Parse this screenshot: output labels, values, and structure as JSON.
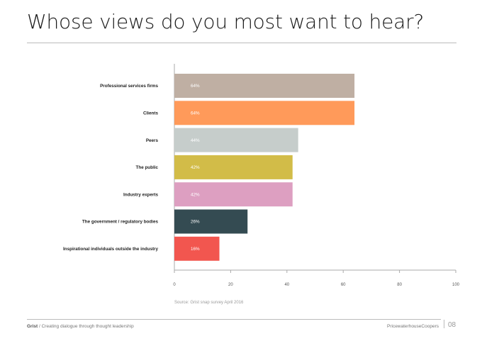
{
  "page": {
    "title": "Whose views do you most want to hear?",
    "source": "Source: Grist snap survey April 2016",
    "footer_brand": "Grist",
    "footer_tagline": " / Creating dialogue through thought leadership",
    "footer_company": "PricewaterhouseCoopers",
    "page_number": "08"
  },
  "chart_data": {
    "type": "bar",
    "orientation": "horizontal",
    "title": "Whose views do you most want to hear?",
    "xlabel": "",
    "ylabel": "",
    "xlim": [
      0,
      100
    ],
    "xticks": [
      0,
      20,
      40,
      60,
      80,
      100
    ],
    "grid": false,
    "categories": [
      "Professional services firms",
      "Clients",
      "Peers",
      "The public",
      "Industry experts",
      "The government / regulatory bodies",
      "Inspirational individuals outside the industry"
    ],
    "values": [
      64,
      64,
      44,
      42,
      42,
      26,
      16
    ],
    "value_labels": [
      "64%",
      "64%",
      "44%",
      "42%",
      "42%",
      "26%",
      "16%"
    ],
    "colors": [
      "#bfafa3",
      "#ff9a5a",
      "#c6cdcb",
      "#d2bc48",
      "#dd9fc1",
      "#344b52",
      "#f2564f"
    ]
  }
}
